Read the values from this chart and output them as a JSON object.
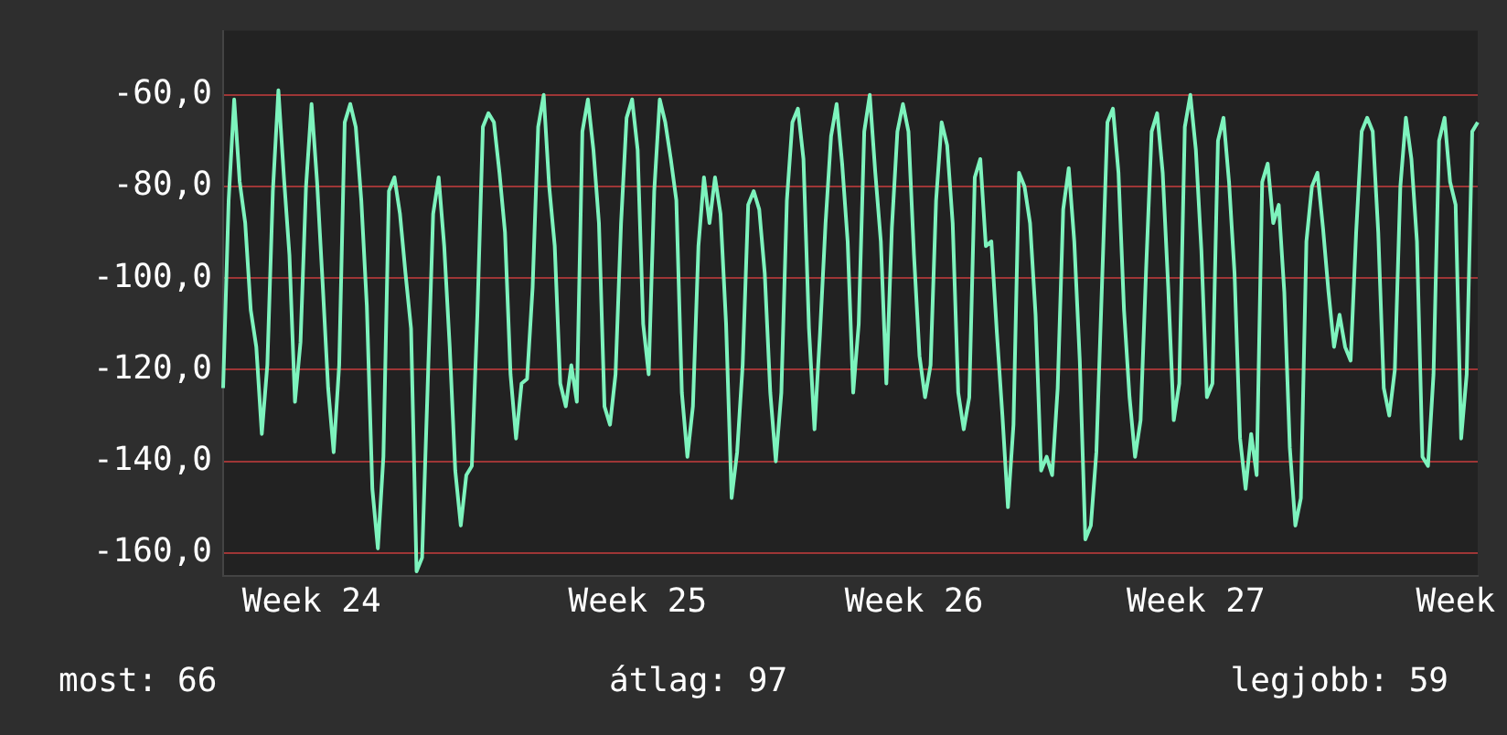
{
  "chart_data": {
    "type": "line",
    "categories": [
      null,
      null,
      null,
      null,
      null,
      null,
      null,
      null,
      null,
      null,
      null,
      null,
      null,
      null,
      null,
      null,
      "Week 24",
      null,
      null,
      null,
      null,
      null,
      null,
      null,
      null,
      null,
      null,
      null,
      null,
      null,
      null,
      null,
      null,
      null,
      null,
      null,
      null,
      null,
      null,
      null,
      null,
      null,
      null,
      null,
      null,
      null,
      null,
      null,
      null,
      null,
      null,
      null,
      null,
      null,
      null,
      null,
      null,
      null,
      null,
      null,
      null,
      null,
      null,
      null,
      null,
      null,
      null,
      null,
      null,
      null,
      null,
      null,
      null,
      null,
      null,
      "Week 25",
      null,
      null,
      null,
      null,
      null,
      null,
      null,
      null,
      null,
      null,
      null,
      null,
      null,
      null,
      null,
      null,
      null,
      null,
      null,
      null,
      null,
      null,
      null,
      null,
      null,
      null,
      null,
      null,
      null,
      null,
      null,
      null,
      null,
      null,
      null,
      null,
      null,
      null,
      null,
      null,
      null,
      null,
      null,
      null,
      null,
      null,
      null,
      null,
      null,
      "Week 26",
      null,
      null,
      null,
      null,
      null,
      null,
      null,
      null,
      null,
      null,
      null,
      null,
      null,
      null,
      null,
      null,
      null,
      null,
      null,
      null,
      null,
      null,
      null,
      null,
      null,
      null,
      null,
      null,
      null,
      null,
      null,
      null,
      null,
      null,
      null,
      null,
      null,
      null,
      null,
      null,
      null,
      null,
      null,
      null,
      null,
      null,
      null,
      null,
      null,
      null,
      "Week 27",
      null,
      null,
      null,
      null,
      null,
      null,
      null,
      null,
      null,
      null,
      null,
      null,
      null,
      null,
      null,
      null,
      null,
      null,
      null,
      null,
      null,
      null,
      null,
      null,
      null,
      null,
      null,
      null,
      null,
      null,
      null,
      null,
      null,
      null,
      null,
      null,
      null,
      null,
      null,
      null,
      null,
      null,
      null,
      null,
      null,
      null,
      "Week",
      null,
      null,
      null,
      null
    ],
    "series": [
      {
        "color": "#7df3bd",
        "values": [
          -124,
          -83,
          -61,
          -79,
          -88,
          -107,
          -115,
          -134,
          -119,
          -81,
          -59,
          -78,
          -95,
          -127,
          -114,
          -80,
          -62,
          -79,
          -101,
          -124,
          -138,
          -119,
          -66,
          -62,
          -67,
          -83,
          -106,
          -146,
          -159,
          -139,
          -81,
          -78,
          -86,
          -99,
          -111,
          -164,
          -161,
          -124,
          -86,
          -78,
          -93,
          -115,
          -142,
          -154,
          -143,
          -141,
          -108,
          -67,
          -64,
          -66,
          -77,
          -90,
          -121,
          -135,
          -123,
          -122,
          -102,
          -67,
          -60,
          -80,
          -93,
          -123,
          -128,
          -119,
          -127,
          -68,
          -61,
          -72,
          -88,
          -128,
          -132,
          -121,
          -88,
          -65,
          -61,
          -72,
          -110,
          -121,
          -81,
          -61,
          -66,
          -74,
          -83,
          -125,
          -139,
          -128,
          -93,
          -78,
          -88,
          -78,
          -86,
          -110,
          -148,
          -138,
          -119,
          -84,
          -81,
          -85,
          -99,
          -125,
          -140,
          -125,
          -83,
          -66,
          -63,
          -74,
          -111,
          -133,
          -112,
          -88,
          -69,
          -62,
          -75,
          -92,
          -125,
          -110,
          -68,
          -60,
          -77,
          -92,
          -123,
          -89,
          -68,
          -62,
          -68,
          -95,
          -117,
          -126,
          -119,
          -83,
          -66,
          -71,
          -88,
          -125,
          -133,
          -126,
          -78,
          -74,
          -93,
          -92,
          -112,
          -130,
          -150,
          -132,
          -77,
          -80,
          -88,
          -108,
          -142,
          -139,
          -143,
          -124,
          -85,
          -76,
          -92,
          -118,
          -157,
          -154,
          -138,
          -102,
          -66,
          -63,
          -77,
          -107,
          -126,
          -139,
          -131,
          -98,
          -68,
          -64,
          -77,
          -102,
          -131,
          -123,
          -67,
          -60,
          -72,
          -94,
          -126,
          -123,
          -70,
          -65,
          -79,
          -99,
          -135,
          -146,
          -134,
          -143,
          -79,
          -75,
          -88,
          -84,
          -103,
          -137,
          -154,
          -148,
          -92,
          -80,
          -77,
          -89,
          -103,
          -115,
          -108,
          -115,
          -118,
          -90,
          -68,
          -65,
          -68,
          -90,
          -124,
          -130,
          -120,
          -80,
          -65,
          -74,
          -92,
          -139,
          -141,
          -121,
          -70,
          -65,
          -79,
          -84,
          -135,
          -121,
          -68,
          -66
        ]
      }
    ],
    "ylim": [
      -165,
      -46
    ],
    "yticks": [
      {
        "value": -160,
        "label": "-160,0"
      },
      {
        "value": -140,
        "label": "-140,0"
      },
      {
        "value": -120,
        "label": "-120,0"
      },
      {
        "value": -100,
        "label": "-100,0"
      },
      {
        "value": -80,
        "label": "-80,0"
      },
      {
        "value": -60,
        "label": "-60,0"
      }
    ],
    "grid": "y",
    "annotations": [
      "most: 66",
      "átlag: 97",
      "legjobb: 59"
    ]
  }
}
